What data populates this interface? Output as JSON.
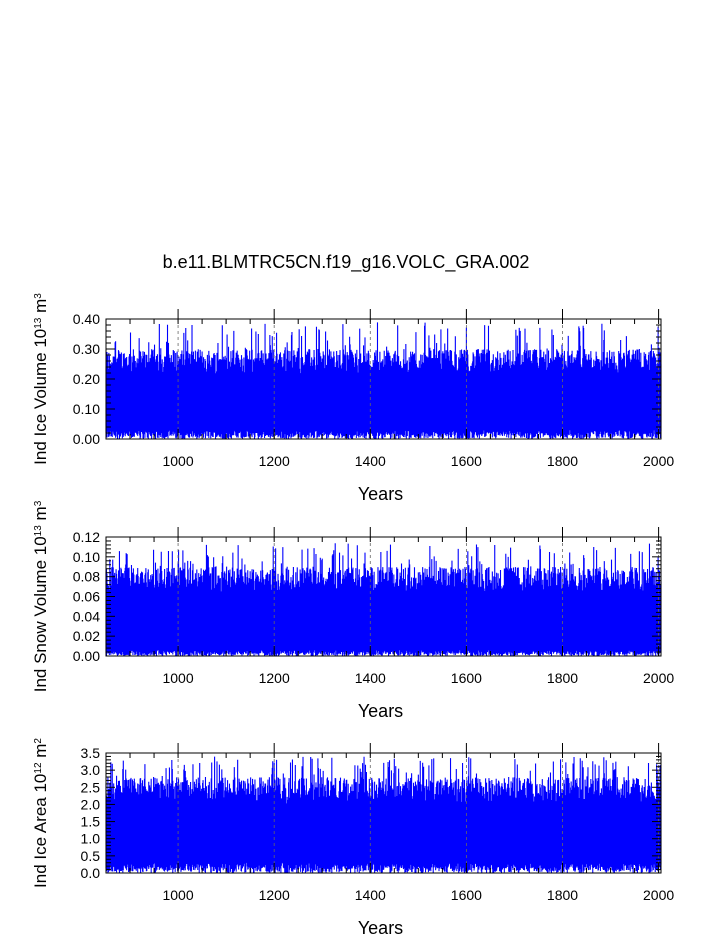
{
  "title": "b.e11.BLMTRC5CN.f19_g16.VOLC_GRA.002",
  "colors": {
    "series": "#0000ff",
    "axis": "#000000",
    "grid": "#666666"
  },
  "chart_data": [
    {
      "type": "line",
      "ylabel": {
        "text": "Ind Ice Volume 10",
        "exp1": "13",
        "unit": " m",
        "exp2": "3"
      },
      "xlabel": "Years",
      "xlim": [
        850,
        2005
      ],
      "ylim": [
        0.0,
        0.4
      ],
      "xticks": [
        "1000",
        "1200",
        "1400",
        "1600",
        "1800",
        "2000"
      ],
      "yticks": [
        "0.00",
        "0.10",
        "0.20",
        "0.30",
        "0.40"
      ],
      "grid": "vertical dashed at major x ticks",
      "series": [
        {
          "color": "#0000ff",
          "min_range": [
            0.0,
            0.03
          ],
          "typical_max": 0.3,
          "peak_max": 0.39
        }
      ]
    },
    {
      "type": "line",
      "ylabel": {
        "text": "Ind Snow Volume 10",
        "exp1": "13",
        "unit": " m",
        "exp2": "3"
      },
      "xlabel": "Years",
      "xlim": [
        850,
        2005
      ],
      "ylim": [
        0.0,
        0.12
      ],
      "xticks": [
        "1000",
        "1200",
        "1400",
        "1600",
        "1800",
        "2000"
      ],
      "yticks": [
        "0.00",
        "0.02",
        "0.04",
        "0.06",
        "0.08",
        "0.10",
        "0.12"
      ],
      "grid": "vertical dashed at major x ticks",
      "series": [
        {
          "color": "#0000ff",
          "min_range": [
            0.0,
            0.006
          ],
          "typical_max": 0.09,
          "peak_max": 0.114
        }
      ]
    },
    {
      "type": "line",
      "ylabel": {
        "text": "Ind Ice Area 10",
        "exp1": "12",
        "unit": " m",
        "exp2": "2"
      },
      "xlabel": "Years",
      "xlim": [
        850,
        2005
      ],
      "ylim": [
        0.0,
        3.5
      ],
      "xticks": [
        "1000",
        "1200",
        "1400",
        "1600",
        "1800",
        "2000"
      ],
      "yticks": [
        "0.0",
        "0.5",
        "1.0",
        "1.5",
        "2.0",
        "2.5",
        "3.0",
        "3.5"
      ],
      "grid": "vertical dashed at major x ticks",
      "series": [
        {
          "color": "#0000ff",
          "min_range": [
            0.0,
            0.3
          ],
          "typical_max": 2.8,
          "peak_max": 3.4
        }
      ]
    }
  ]
}
